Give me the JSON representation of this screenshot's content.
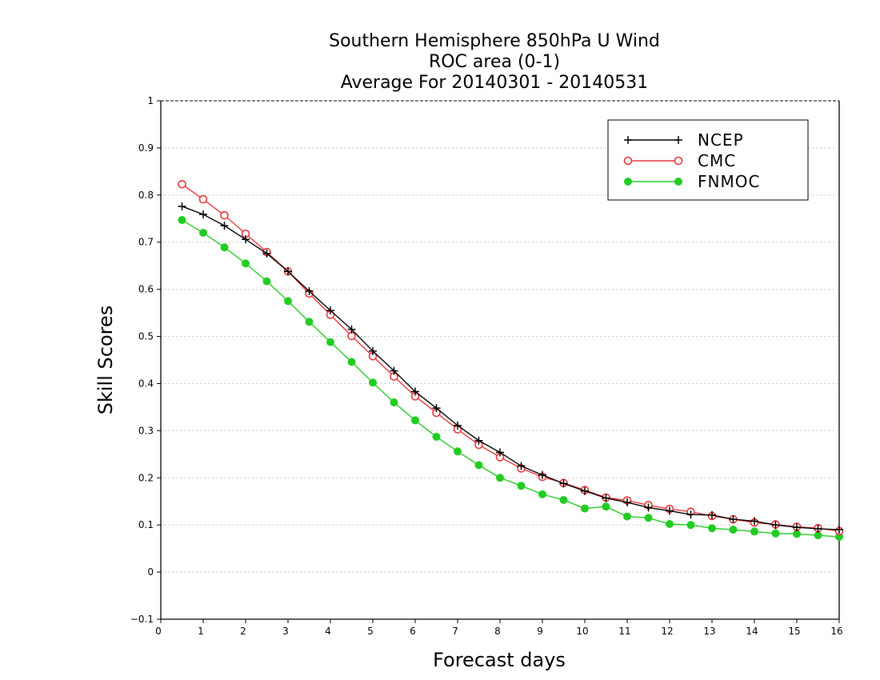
{
  "chart_data": {
    "type": "line",
    "title_lines": [
      "Southern Hemisphere 850hPa U Wind",
      "ROC area (0-1)",
      "Average For 20140301 - 20140531"
    ],
    "xlabel": "Forecast days",
    "ylabel": "Skill Scores",
    "xlim": [
      0,
      16
    ],
    "ylim": [
      -0.1,
      1
    ],
    "xticks": [
      "0",
      "1",
      "2",
      "3",
      "4",
      "5",
      "6",
      "7",
      "8",
      "9",
      "10",
      "11",
      "12",
      "13",
      "14",
      "15",
      "16"
    ],
    "yticks": [
      "−0.1",
      "0",
      "0.1",
      "0.2",
      "0.3",
      "0.4",
      "0.5",
      "0.6",
      "0.7",
      "0.8",
      "0.9",
      "1"
    ],
    "grid": true,
    "legend_position": "top-right",
    "x": [
      0.5,
      1,
      1.5,
      2,
      2.5,
      3,
      3.5,
      4,
      4.5,
      5,
      5.5,
      6,
      6.5,
      7,
      7.5,
      8,
      8.5,
      9,
      9.5,
      10,
      10.5,
      11,
      11.5,
      12,
      12.5,
      13,
      13.5,
      14,
      14.5,
      15,
      15.5,
      16
    ],
    "series": [
      {
        "name": "NCEP",
        "color": "#000000",
        "marker": "plus",
        "values": [
          0.776,
          0.759,
          0.735,
          0.706,
          0.676,
          0.638,
          0.596,
          0.555,
          0.515,
          0.469,
          0.427,
          0.383,
          0.348,
          0.311,
          0.279,
          0.254,
          0.225,
          0.206,
          0.188,
          0.172,
          0.157,
          0.148,
          0.137,
          0.13,
          0.122,
          0.121,
          0.112,
          0.108,
          0.1,
          0.095,
          0.092,
          0.09
        ]
      },
      {
        "name": "CMC",
        "color": "#e8363a",
        "marker": "open-circle",
        "values": [
          0.823,
          0.791,
          0.757,
          0.718,
          0.679,
          0.638,
          0.591,
          0.546,
          0.501,
          0.458,
          0.415,
          0.373,
          0.338,
          0.303,
          0.27,
          0.244,
          0.22,
          0.202,
          0.189,
          0.174,
          0.158,
          0.152,
          0.142,
          0.134,
          0.128,
          0.119,
          0.112,
          0.105,
          0.101,
          0.096,
          0.093,
          0.087
        ]
      },
      {
        "name": "FNMOC",
        "color": "#22cc22",
        "marker": "filled-circle",
        "values": [
          0.747,
          0.72,
          0.689,
          0.655,
          0.617,
          0.575,
          0.531,
          0.488,
          0.446,
          0.402,
          0.36,
          0.322,
          0.287,
          0.256,
          0.227,
          0.2,
          0.183,
          0.165,
          0.153,
          0.135,
          0.139,
          0.118,
          0.115,
          0.102,
          0.1,
          0.093,
          0.09,
          0.086,
          0.082,
          0.081,
          0.078,
          0.075
        ]
      }
    ]
  }
}
